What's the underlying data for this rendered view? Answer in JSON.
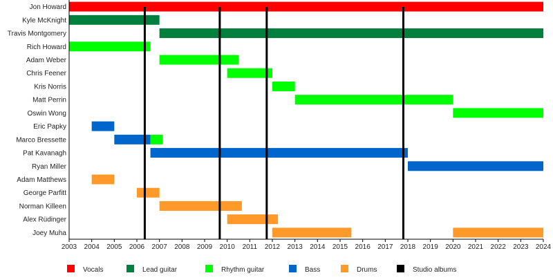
{
  "chart_data": {
    "type": "timeline",
    "xlim": [
      2003,
      2024
    ],
    "x_ticks": [
      2003,
      2004,
      2005,
      2006,
      2007,
      2008,
      2009,
      2010,
      2011,
      2012,
      2013,
      2014,
      2015,
      2016,
      2017,
      2018,
      2019,
      2020,
      2021,
      2022,
      2023,
      2024
    ],
    "roles": [
      {
        "key": "vocals",
        "name": "Vocals",
        "color": "#ff0000"
      },
      {
        "key": "lead",
        "name": "Lead guitar",
        "color": "#00803c"
      },
      {
        "key": "rhythm",
        "name": "Rhythm guitar",
        "color": "#00ff00"
      },
      {
        "key": "bass",
        "name": "Bass",
        "color": "#0066cc"
      },
      {
        "key": "drums",
        "name": "Drums",
        "color": "#ff9a2a"
      },
      {
        "key": "albums",
        "name": "Studio albums",
        "color": "#000000"
      }
    ],
    "members": [
      {
        "name": "Jon Howard",
        "periods": [
          {
            "role": "vocals",
            "start": 2003,
            "end": 2024
          }
        ]
      },
      {
        "name": "Kyle McKnight",
        "periods": [
          {
            "role": "lead",
            "start": 2003,
            "end": 2007
          }
        ]
      },
      {
        "name": "Travis Montgomery",
        "periods": [
          {
            "role": "lead",
            "start": 2007,
            "end": 2024
          }
        ]
      },
      {
        "name": "Rich Howard",
        "periods": [
          {
            "role": "rhythm",
            "start": 2003,
            "end": 2006.6
          }
        ]
      },
      {
        "name": "Adam Weber",
        "periods": [
          {
            "role": "rhythm",
            "start": 2007,
            "end": 2010.5
          }
        ]
      },
      {
        "name": "Chris Feener",
        "periods": [
          {
            "role": "rhythm",
            "start": 2010,
            "end": 2012
          }
        ]
      },
      {
        "name": "Kris Norris",
        "periods": [
          {
            "role": "rhythm",
            "start": 2012,
            "end": 2013
          }
        ]
      },
      {
        "name": "Matt Perrin",
        "periods": [
          {
            "role": "rhythm",
            "start": 2013,
            "end": 2020
          }
        ]
      },
      {
        "name": "Oswin Wong",
        "periods": [
          {
            "role": "rhythm",
            "start": 2020,
            "end": 2024
          }
        ]
      },
      {
        "name": "Eric Papky",
        "periods": [
          {
            "role": "bass",
            "start": 2004,
            "end": 2005
          }
        ]
      },
      {
        "name": "Marco Bressette",
        "periods": [
          {
            "role": "bass",
            "start": 2005,
            "end": 2006.6
          },
          {
            "role": "rhythm",
            "start": 2006.6,
            "end": 2007.15
          }
        ]
      },
      {
        "name": "Pat Kavanagh",
        "periods": [
          {
            "role": "bass",
            "start": 2006.6,
            "end": 2018
          }
        ]
      },
      {
        "name": "Ryan Miller",
        "periods": [
          {
            "role": "bass",
            "start": 2018,
            "end": 2024
          }
        ]
      },
      {
        "name": "Adam Matthews",
        "periods": [
          {
            "role": "drums",
            "start": 2004,
            "end": 2005
          }
        ]
      },
      {
        "name": "George Parfitt",
        "periods": [
          {
            "role": "drums",
            "start": 2006,
            "end": 2007
          }
        ]
      },
      {
        "name": "Norman Killeen",
        "periods": [
          {
            "role": "drums",
            "start": 2007,
            "end": 2010.65
          }
        ]
      },
      {
        "name": "Alex Rüdinger",
        "periods": [
          {
            "role": "drums",
            "start": 2010,
            "end": 2012.25
          }
        ]
      },
      {
        "name": "Joey Muha",
        "periods": [
          {
            "role": "drums",
            "start": 2012,
            "end": 2015.5
          },
          {
            "role": "drums",
            "start": 2020,
            "end": 2024
          }
        ]
      }
    ],
    "studio_albums": [
      2006.35,
      2009.67,
      2011.75,
      2017.8
    ],
    "legend_position": "bottom"
  }
}
